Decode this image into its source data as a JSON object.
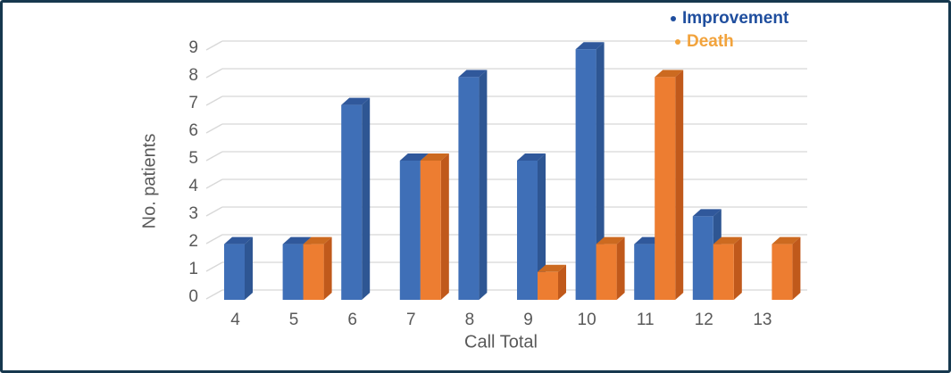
{
  "chart_data": {
    "type": "bar",
    "subtype": "3d-clustered-column",
    "title": "",
    "xlabel": "Call Total",
    "ylabel": "No. patients",
    "categories": [
      "4",
      "5",
      "6",
      "7",
      "8",
      "9",
      "10",
      "11",
      "12",
      "13"
    ],
    "series": [
      {
        "name": "Improvement",
        "values": [
          2,
          2,
          7,
          5,
          8,
          5,
          9,
          2,
          3,
          0
        ],
        "color": "#3F6FB7",
        "side_color": "#2E5693",
        "top_color": "#30589B",
        "legend_text_color": "#1F4E9E"
      },
      {
        "name": "Death",
        "values": [
          0,
          2,
          0,
          5,
          0,
          1,
          2,
          8,
          2,
          2
        ],
        "color": "#ED7D31",
        "side_color": "#C0591B",
        "top_color": "#CC6A20",
        "legend_text_color": "#F2A33C"
      }
    ],
    "ylim": [
      0,
      9
    ],
    "ytick_step": 1,
    "yticks": [
      0,
      1,
      2,
      3,
      4,
      5,
      6,
      7,
      8,
      9
    ],
    "grid": "horizontal",
    "gridline_color": "#D8D8D8",
    "axis_text_color": "#595959",
    "legend_position": "top-right",
    "frame_border_color": "#16384E"
  }
}
